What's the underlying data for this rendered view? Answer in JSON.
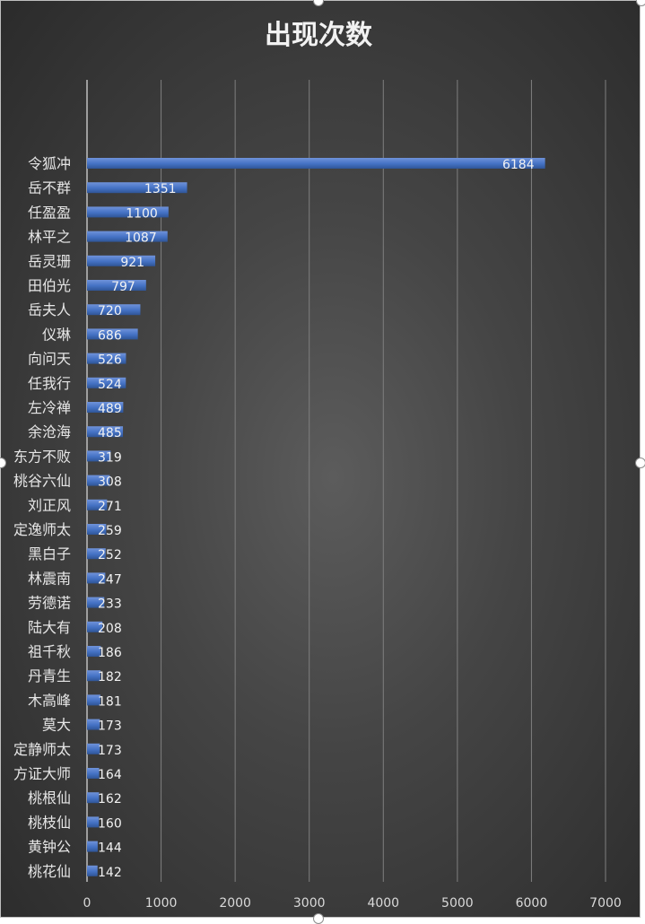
{
  "chart_data": {
    "type": "bar",
    "orientation": "horizontal",
    "title": "出现次数",
    "categories": [
      "令狐冲",
      "岳不群",
      "任盈盈",
      "林平之",
      "岳灵珊",
      "田伯光",
      "岳夫人",
      "仪琳",
      "向问天",
      "任我行",
      "左冷禅",
      "余沧海",
      "东方不败",
      "桃谷六仙",
      "刘正风",
      "定逸师太",
      "黑白子",
      "林震南",
      "劳德诺",
      "陆大有",
      "祖千秋",
      "丹青生",
      "木高峰",
      "莫大",
      "定静师太",
      "方证大师",
      "桃根仙",
      "桃枝仙",
      "黄钟公",
      "桃花仙"
    ],
    "values": [
      6184,
      1351,
      1100,
      1087,
      921,
      797,
      720,
      686,
      526,
      524,
      489,
      485,
      319,
      308,
      271,
      259,
      252,
      247,
      233,
      208,
      186,
      182,
      181,
      173,
      173,
      164,
      162,
      160,
      144,
      142
    ],
    "xlim": [
      0,
      7000
    ],
    "xticks": [
      0,
      1000,
      2000,
      3000,
      4000,
      5000,
      6000,
      7000
    ],
    "grid": true,
    "legend": "none",
    "bar_color": "#4472c4",
    "gridline_color": "#7f7f7f"
  }
}
